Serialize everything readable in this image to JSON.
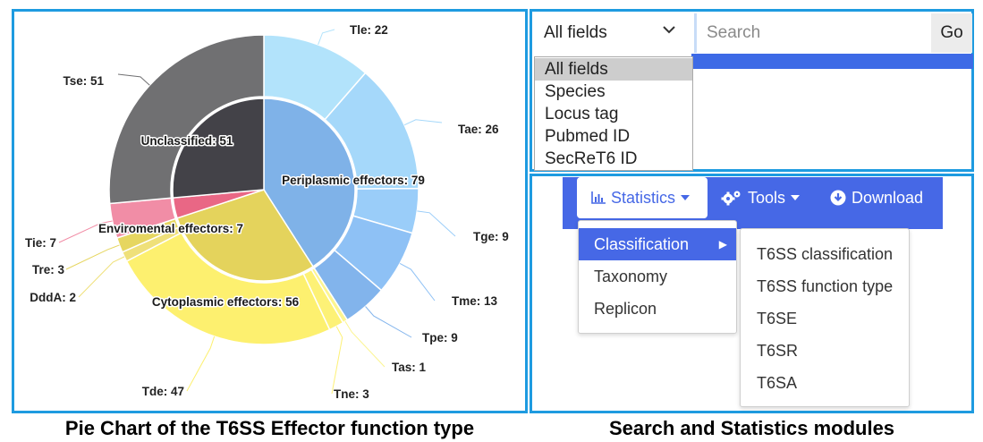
{
  "pie_panel": {
    "caption": "Pie Chart of the T6SS Effector function type"
  },
  "chart_data": {
    "type": "pie",
    "inner": [
      {
        "label": "Periplasmic effectors: 79",
        "value": 79,
        "color": "#7fb2e8"
      },
      {
        "label": "Cytoplasmic effectors: 56",
        "value": 56,
        "color": "#e4d35c"
      },
      {
        "label": "Enviromental effectors: 7",
        "value": 7,
        "color": "#e96785"
      },
      {
        "label": "Unclassified: 51",
        "value": 51,
        "color": "#434248"
      }
    ],
    "outer": [
      {
        "label": "Tle: 22",
        "value": 22,
        "color": "#b2e3fb",
        "group": 0
      },
      {
        "label": "Tae: 26",
        "value": 26,
        "color": "#a5d8fa",
        "group": 0
      },
      {
        "label": "Tge: 9",
        "value": 9,
        "color": "#9acdf9",
        "group": 0
      },
      {
        "label": "Tme: 13",
        "value": 13,
        "color": "#8ec1f5",
        "group": 0
      },
      {
        "label": "Tpe: 9",
        "value": 9,
        "color": "#82b4ec",
        "group": 0
      },
      {
        "label": "Tas: 1",
        "value": 1,
        "color": "#fcf591",
        "group": 1
      },
      {
        "label": "Tne: 3",
        "value": 3,
        "color": "#fdf176",
        "group": 1
      },
      {
        "label": "Tde: 47",
        "value": 47,
        "color": "#fdf06f",
        "group": 1
      },
      {
        "label": "DddA: 2",
        "value": 2,
        "color": "#efe07a",
        "group": 1
      },
      {
        "label": "Tre: 3",
        "value": 3,
        "color": "#e6d660",
        "group": 1
      },
      {
        "label": "Tie: 7",
        "value": 7,
        "color": "#f18da6",
        "group": 2
      },
      {
        "label": "Tse: 51",
        "value": 51,
        "color": "#707072",
        "group": 3
      }
    ]
  },
  "search": {
    "field_selected": "All fields",
    "placeholder": "Search",
    "go_label": "Go",
    "options": [
      "All fields",
      "Species",
      "Locus tag",
      "Pubmed ID",
      "SecReT6 ID"
    ]
  },
  "stats": {
    "caption": "Search and Statistics modules",
    "nav": {
      "statistics": "Statistics",
      "tools": "Tools",
      "download": "Download"
    },
    "menu": [
      "Classification",
      "Taxonomy",
      "Replicon"
    ],
    "submenu": [
      "T6SS classification",
      "T6SS function type",
      "T6SE",
      "T6SR",
      "T6SA"
    ],
    "accent_color": "#4668e6"
  }
}
